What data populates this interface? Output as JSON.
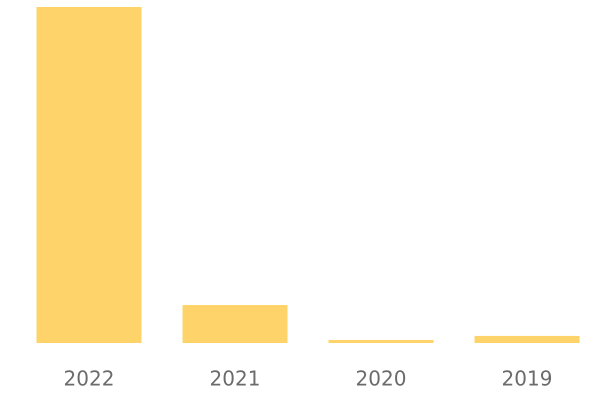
{
  "chart_data": {
    "type": "bar",
    "categories": [
      "2022",
      "2021",
      "2020",
      "2019"
    ],
    "values": [
      100,
      11.3,
      0.9,
      2.1
    ],
    "color": "#fed46a",
    "ylim": [
      0,
      100
    ]
  }
}
